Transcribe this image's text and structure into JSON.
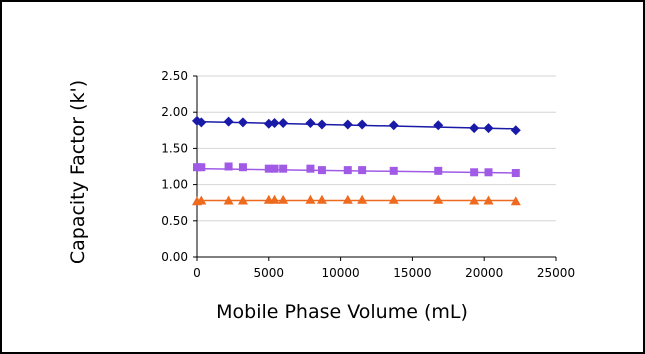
{
  "chart_data": {
    "type": "scatter",
    "title": "",
    "xlabel": "Mobile Phase Volume (mL)",
    "ylabel": "Capacity Factor (k')",
    "xlim": [
      0,
      25000
    ],
    "ylim": [
      0.0,
      2.5
    ],
    "xticks": [
      "0",
      "5000",
      "10000",
      "15000",
      "20000",
      "25000"
    ],
    "yticks": [
      "0.00",
      "0.50",
      "1.00",
      "1.50",
      "2.00",
      "2.50"
    ],
    "grid": "horizontal",
    "legend": "none",
    "series": [
      {
        "marker": "diamond",
        "color": "#1a1aa8",
        "x": [
          0,
          300,
          2200,
          3200,
          5000,
          5400,
          6000,
          7900,
          8700,
          10500,
          11500,
          13700,
          16800,
          19300,
          20300,
          22200
        ],
        "y": [
          1.88,
          1.86,
          1.87,
          1.86,
          1.84,
          1.85,
          1.85,
          1.85,
          1.83,
          1.83,
          1.83,
          1.82,
          1.82,
          1.78,
          1.78,
          1.75
        ],
        "trend": [
          [
            0,
            1.87
          ],
          [
            22200,
            1.77
          ]
        ]
      },
      {
        "marker": "square",
        "color": "#a05ae6",
        "x": [
          0,
          300,
          2200,
          3200,
          5000,
          5400,
          6000,
          7900,
          8700,
          10500,
          11500,
          13700,
          16800,
          19300,
          20300,
          22200
        ],
        "y": [
          1.24,
          1.24,
          1.25,
          1.24,
          1.22,
          1.22,
          1.22,
          1.22,
          1.2,
          1.2,
          1.2,
          1.19,
          1.19,
          1.17,
          1.17,
          1.16
        ],
        "trend": [
          [
            0,
            1.22
          ],
          [
            22200,
            1.16
          ]
        ]
      },
      {
        "marker": "triangle",
        "color": "#ee6a1e",
        "x": [
          0,
          300,
          2200,
          3200,
          5000,
          5400,
          6000,
          7900,
          8700,
          10500,
          11500,
          13700,
          16800,
          19300,
          20300,
          22200
        ],
        "y": [
          0.77,
          0.78,
          0.78,
          0.78,
          0.79,
          0.79,
          0.79,
          0.79,
          0.79,
          0.79,
          0.79,
          0.79,
          0.79,
          0.78,
          0.78,
          0.77
        ],
        "trend": [
          [
            0,
            0.78
          ],
          [
            22200,
            0.78
          ]
        ]
      }
    ]
  }
}
